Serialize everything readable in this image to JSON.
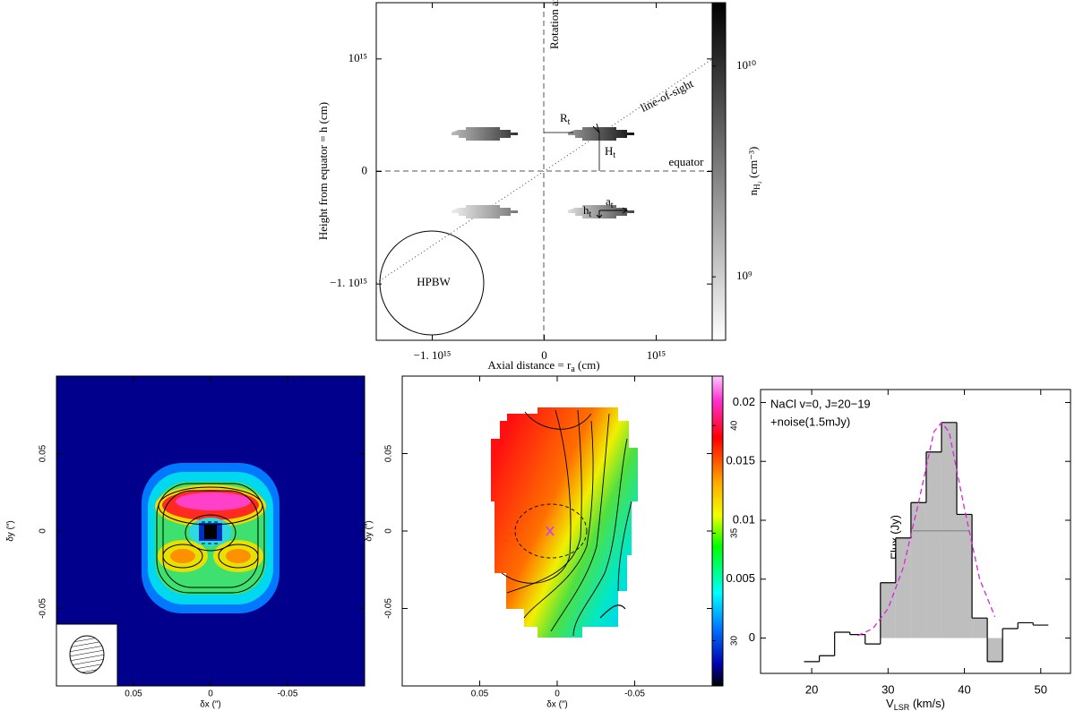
{
  "chart_data": [
    {
      "type": "diagram",
      "xlabel": "Axial distance = r",
      "xlabel_sub": "a",
      "xlabel_rest": " (cm)",
      "ylabel": "Height from equator = h (cm)",
      "xlim": [
        -1500000000000000.0,
        1500000000000000.0
      ],
      "ylim": [
        -1500000000000000.0,
        1500000000000000.0
      ],
      "xticks": [
        {
          "value": -1000000000000000.0,
          "label": "−1. 10¹⁵"
        },
        0,
        {
          "value": 1000000000000000.0,
          "label": "10¹⁵"
        }
      ],
      "yticks": [
        {
          "value": -1000000000000000.0,
          "label": "−1. 10¹⁵"
        },
        0,
        {
          "value": 1000000000000000.0,
          "label": "10¹⁵"
        }
      ],
      "colorbar": {
        "label": "n",
        "label_sub": "H₂",
        "label_rest": " (cm⁻³)",
        "clim": [
          500000000.0,
          20000000000.0
        ],
        "log": true,
        "ticks": [
          {
            "value": 1000000000.0,
            "label": "10⁹"
          },
          {
            "value": 10000000000.0,
            "label": "10¹⁰"
          }
        ]
      },
      "annotations": {
        "rotation_axis": "Rotation axis",
        "line_of_sight": "line-of-sight",
        "equator": "equator",
        "R": "R",
        "R_sub": "t",
        "H": "H",
        "H_sub": "t",
        "a": "a",
        "a_sub": "t",
        "h": "h",
        "h_sub": "t",
        "beam": "HPBW"
      }
    },
    {
      "type": "heatmap",
      "xlabel": "δx (″)",
      "ylabel": "δy (″)",
      "xlim": [
        0.1,
        -0.1
      ],
      "ylim": [
        -0.1,
        0.1
      ],
      "xticks": [
        0.05,
        0,
        -0.05
      ],
      "yticks": [
        0.05,
        0,
        -0.05
      ]
    },
    {
      "type": "heatmap",
      "xlabel": "δx (″)",
      "ylabel": "δy (″)",
      "xlim": [
        0.1,
        -0.1
      ],
      "ylim": [
        -0.1,
        0.1
      ],
      "xticks": [
        0.05,
        0,
        -0.05
      ],
      "yticks": [
        0.05,
        0,
        -0.05
      ],
      "colorbar": {
        "clim": [
          27.9,
          42.3
        ],
        "log": false,
        "ticks": [
          30,
          35,
          40
        ]
      }
    },
    {
      "type": "histogram",
      "ylabel": "Flux (Jy)",
      "xlabel": "V",
      "xlabel_sub": "LSR",
      "xlabel_rest": " (km/s)",
      "annotations": [
        "NaCl v=0, J=20−19",
        "+noise(1.5mJy)"
      ],
      "bins": [
        19,
        21,
        23,
        25,
        27,
        29,
        31,
        33,
        35,
        37,
        39,
        41,
        43,
        45,
        47,
        49,
        51
      ],
      "values": [
        -0.002,
        -0.0015,
        0.0005,
        0.0003,
        -0.0005,
        0.0047,
        0.0085,
        0.0115,
        0.0158,
        0.0183,
        0.0105,
        0.0017,
        -0.002,
        0.0008,
        0.0013,
        0.0011
      ],
      "fill_range": [
        29,
        45
      ],
      "color": "#bebebe",
      "fit": {
        "color": "#e020e0",
        "x": [
          26,
          28,
          30,
          32,
          34,
          36,
          37,
          38,
          40,
          42,
          44
        ],
        "values": [
          0.0002,
          0.0008,
          0.0025,
          0.006,
          0.0115,
          0.0175,
          0.0183,
          0.0175,
          0.011,
          0.005,
          0.0018
        ]
      },
      "half_line": {
        "x": [
          33.2,
          40.7
        ],
        "values": [
          0.0091,
          0.0091
        ]
      },
      "xlim": [
        13.3,
        53.9
      ],
      "ylim": [
        -0.003,
        0.0211
      ],
      "xticks": [
        20,
        30,
        40,
        50
      ],
      "yticks": [
        0,
        0.005,
        0.01,
        0.015,
        0.02
      ]
    }
  ]
}
